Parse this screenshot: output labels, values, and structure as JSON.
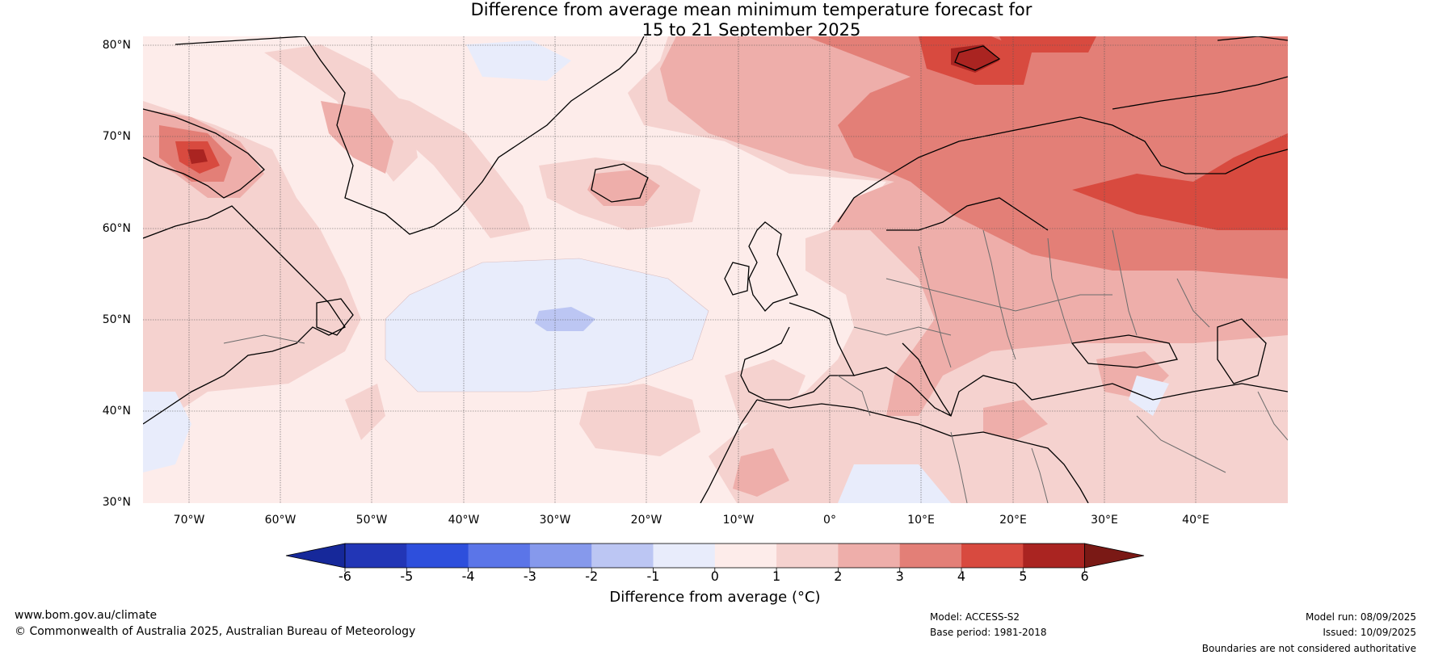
{
  "title": {
    "line1": "Difference from average mean minimum temperature forecast for",
    "line2": "15 to 21 September 2025"
  },
  "map": {
    "lat_labels": [
      "80°N",
      "70°N",
      "60°N",
      "50°N",
      "40°N",
      "30°N"
    ],
    "lat_values": [
      80,
      70,
      60,
      50,
      40,
      30
    ],
    "lon_labels": [
      "70°W",
      "60°W",
      "50°W",
      "40°W",
      "30°W",
      "20°W",
      "10°W",
      "0°",
      "10°E",
      "20°E",
      "30°E",
      "40°E"
    ],
    "lon_values": [
      -70,
      -60,
      -50,
      -40,
      -30,
      -20,
      -10,
      0,
      10,
      20,
      30,
      40
    ],
    "lon_range": [
      -75,
      50
    ],
    "lat_range": [
      30,
      81
    ]
  },
  "colorbar": {
    "label": "Difference from average (°C)",
    "ticks": [
      "-6",
      "-5",
      "-4",
      "-3",
      "-2",
      "-1",
      "0",
      "1",
      "2",
      "3",
      "4",
      "5",
      "6"
    ],
    "colors": [
      "#16289a",
      "#2236b6",
      "#2e4fdc",
      "#5b75e8",
      "#8699ec",
      "#bcc6f3",
      "#e8ecfb",
      "#fdecea",
      "#f5d2cf",
      "#eeaeaa",
      "#e37f77",
      "#d84a3f",
      "#aa2421",
      "#7a1915"
    ],
    "colors_note_under": "#16289a",
    "over": "#7a1915"
  },
  "footer": {
    "website": "www.bom.gov.au/climate",
    "copyright": "© Commonwealth of Australia 2025, Australian Bureau of Meteorology",
    "model": "Model: ACCESS-S2",
    "base_period": "Base period: 1981-2018",
    "model_run": "Model run: 08/09/2025",
    "issued": "Issued: 10/09/2025",
    "disclaimer": "Boundaries are not considered authoritative"
  }
}
